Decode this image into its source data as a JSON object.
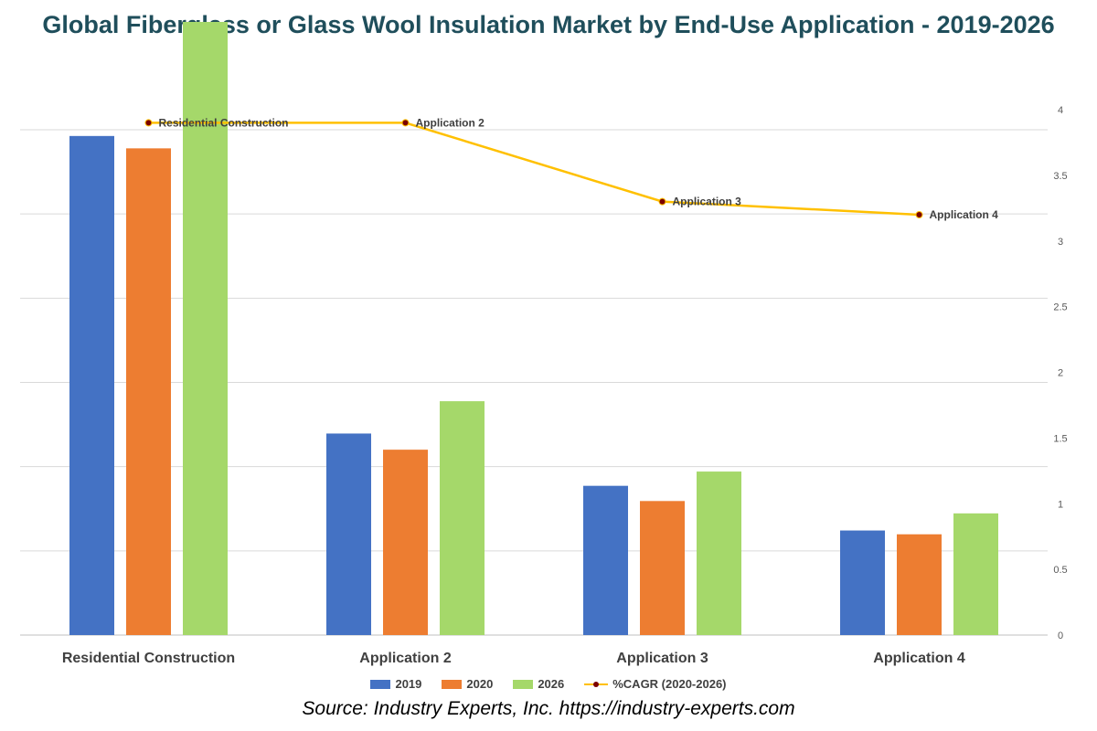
{
  "chart_data": {
    "type": "bar",
    "title": "Global Fiberglass or Glass Wool Insulation Market by End-Use Application - 2019-2026",
    "categories": [
      "Residential Construction",
      "Application 2",
      "Application 3",
      "Application 4"
    ],
    "series": [
      {
        "name": "2019",
        "color": "#4472c4",
        "values": [
          5.25,
          2.12,
          1.57,
          1.1
        ]
      },
      {
        "name": "2020",
        "color": "#ed7d31",
        "values": [
          5.12,
          1.95,
          1.41,
          1.06
        ]
      },
      {
        "name": "2026",
        "color": "#a5d86a",
        "values": [
          6.45,
          2.46,
          1.72,
          1.28
        ]
      }
    ],
    "line_series": {
      "name": "%CAGR (2020-2026)",
      "color": "#ffc000",
      "marker_color": "#7b0000",
      "axis": "secondary",
      "values": [
        3.9,
        3.9,
        3.3,
        3.2
      ],
      "point_labels": [
        "Residential Construction",
        "Application 2",
        "Application 3",
        "Application 4"
      ]
    },
    "primary_ylim": [
      0,
      6.2
    ],
    "secondary_ylim": [
      0,
      4
    ],
    "secondary_ticks": [
      "0",
      "0.5",
      "1",
      "1.5",
      "2",
      "2.5",
      "3",
      "3.5",
      "4"
    ],
    "grid": true,
    "legend": "bottom-center"
  },
  "legend": {
    "items": [
      {
        "label": "2019",
        "color": "#4472c4"
      },
      {
        "label": "2020",
        "color": "#ed7d31"
      },
      {
        "label": "2026",
        "color": "#a5d86a"
      },
      {
        "label": "%CAGR (2020-2026)",
        "color": "#ffc000"
      }
    ]
  },
  "source": "Source: Industry Experts, Inc. https://industry-experts.com"
}
